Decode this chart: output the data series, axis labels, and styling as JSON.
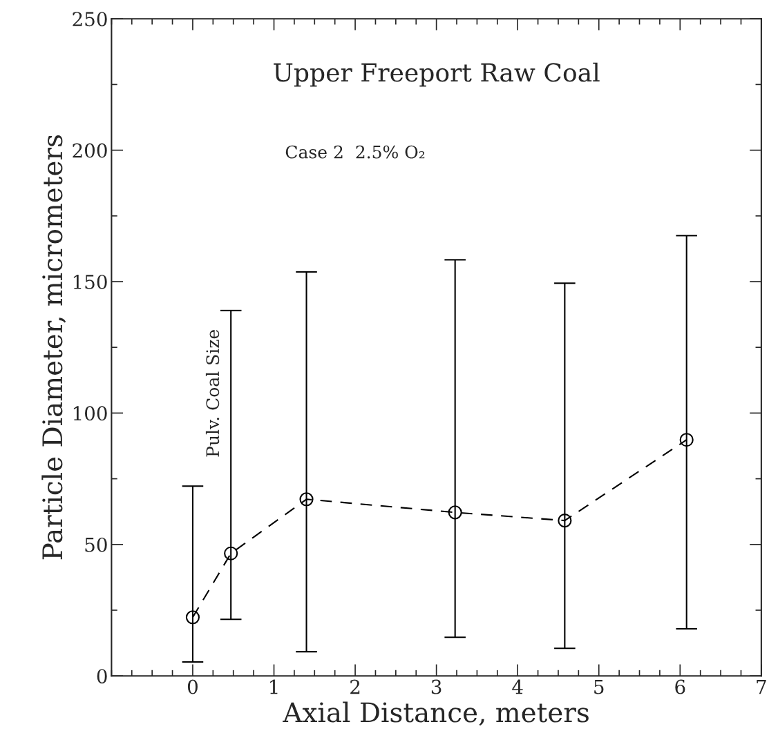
{
  "chart_data": {
    "type": "line",
    "title": "Upper Freeport Raw Coal",
    "xlabel": "Axial Distance, meters",
    "ylabel": "Particle Diameter, micrometers",
    "annotations": [
      "Case 2  2.5% O₂",
      "Pulv. Coal Size"
    ],
    "x": [
      0,
      0.47,
      1.4,
      3.23,
      4.58,
      6.08
    ],
    "series": [
      {
        "color": "#000000",
        "values": [
          22.3,
          46.6,
          67.2,
          62.2,
          59.1,
          89.8
        ],
        "errors": [
          [
            5.3,
            72.2
          ],
          [
            21.5,
            139
          ],
          [
            9.2,
            153.7
          ],
          [
            14.7,
            158.3
          ],
          [
            10.5,
            149.4
          ],
          [
            17.9,
            167.5
          ]
        ]
      }
    ],
    "xlim": [
      -1,
      7
    ],
    "xticks": [
      0,
      1,
      2,
      3,
      4,
      5,
      6,
      7
    ],
    "ylim": [
      0,
      250
    ],
    "yticks": [
      0,
      50,
      100,
      150,
      200,
      250
    ],
    "marker": "circle",
    "line_style": "dashed",
    "grid": false,
    "legend": false
  }
}
